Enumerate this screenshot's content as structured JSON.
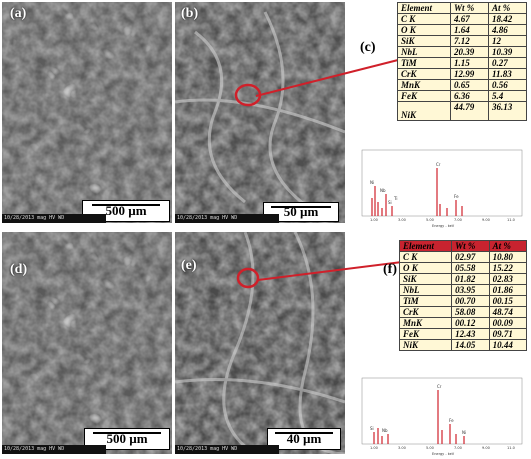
{
  "panels": {
    "a": {
      "label": "(a)",
      "scale": "500 µm",
      "info": "10/28/2013  mag  HV  WD"
    },
    "b": {
      "label": "(b)",
      "scale": "50 µm",
      "info": "10/28/2013  mag  HV  WD"
    },
    "c": {
      "label": "(c)"
    },
    "d": {
      "label": "(d)",
      "scale": "500 µm",
      "info": "10/28/2013  mag  HV  WD"
    },
    "e": {
      "label": "(e)",
      "scale": "40 µm",
      "info": "10/28/2013  mag  HV  WD"
    },
    "f": {
      "label": "(f)"
    }
  },
  "table_c": {
    "headers": [
      "Element",
      "Wt %",
      "At %"
    ],
    "rows": [
      [
        "C K",
        "4.67",
        "18.42"
      ],
      [
        "O K",
        "1.64",
        "4.86"
      ],
      [
        "SiK",
        "7.12",
        "12"
      ],
      [
        "NbL",
        "20.39",
        "10.39"
      ],
      [
        "TiM",
        "1.15",
        "0.27"
      ],
      [
        "CrK",
        "12.99",
        "11.83"
      ],
      [
        "MnK",
        "0.65",
        "0.56"
      ],
      [
        "FeK",
        "6.36",
        "5.4"
      ],
      [
        "NiK",
        "44.79",
        "36.13"
      ]
    ]
  },
  "table_f": {
    "headers": [
      "Element",
      "Wt %",
      "At %"
    ],
    "rows": [
      [
        "C K",
        "02.97",
        "10.80"
      ],
      [
        "O K",
        "05.58",
        "15.22"
      ],
      [
        "SiK",
        "01.82",
        "02.83"
      ],
      [
        "NbL",
        "03.95",
        "01.86"
      ],
      [
        "TiM",
        "00.70",
        "00.15"
      ],
      [
        "CrK",
        "58.08",
        "48.74"
      ],
      [
        "MnK",
        "00.12",
        "00.09"
      ],
      [
        "FeK",
        "12.43",
        "09.71"
      ],
      [
        "NiK",
        "14.05",
        "10.44"
      ]
    ]
  },
  "spectrum": {
    "xlabel": "Energy - keV",
    "peak_labels_1": [
      "Cr",
      "Ni",
      "Fe",
      "Nb",
      "Si",
      "Ti"
    ],
    "peak_labels_2": [
      "Cr",
      "Fe",
      "Ni",
      "Si",
      "Nb"
    ],
    "ticks": [
      "1.00",
      "2.00",
      "3.00",
      "4.00",
      "5.00",
      "6.00",
      "7.00",
      "8.00",
      "9.00",
      "10.0",
      "11.0"
    ]
  },
  "colors": {
    "circle": "#d0202a",
    "pointer": "#d0202a",
    "peak": "#d0202a"
  }
}
